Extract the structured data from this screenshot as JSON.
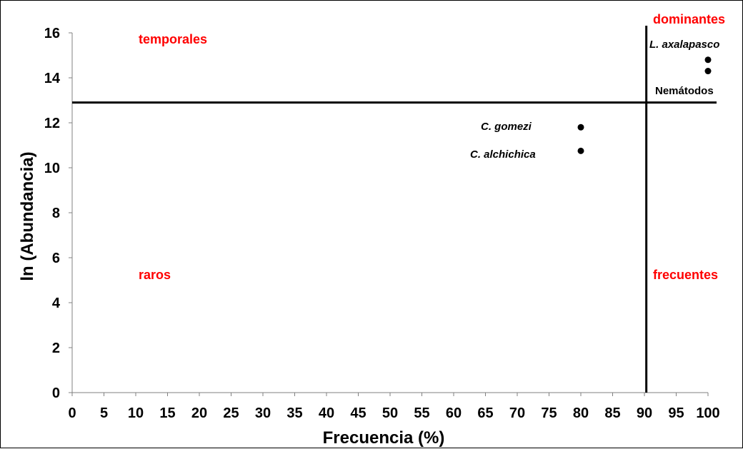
{
  "chart_data": {
    "type": "scatter",
    "title": "",
    "xlabel": "Frecuencia (%)",
    "ylabel": "ln (Abundancia)",
    "xlim": [
      0,
      100
    ],
    "ylim": [
      0,
      16
    ],
    "xticks": [
      0,
      5,
      10,
      15,
      20,
      25,
      30,
      35,
      40,
      45,
      50,
      55,
      60,
      65,
      70,
      75,
      80,
      85,
      90,
      95,
      100
    ],
    "yticks": [
      0,
      2,
      4,
      6,
      8,
      10,
      12,
      14,
      16
    ],
    "grid": false,
    "points": [
      {
        "label": "L. axalapasco",
        "italic": true,
        "x": 100,
        "y": 14.8
      },
      {
        "label": "Nemátodos",
        "italic": false,
        "x": 100,
        "y": 14.3
      },
      {
        "label": "C. gomezi",
        "italic": true,
        "x": 80,
        "y": 11.8
      },
      {
        "label": "C. alchichica",
        "italic": true,
        "x": 80,
        "y": 10.75
      }
    ],
    "reference_lines": {
      "horizontal_y": 12.9,
      "vertical_x": 90.3
    },
    "regions": [
      {
        "label": "temporales",
        "color": "#ff0000"
      },
      {
        "label": "dominantes",
        "color": "#ff0000"
      },
      {
        "label": "raros",
        "color": "#ff0000"
      },
      {
        "label": "frecuentes",
        "color": "#ff0000"
      }
    ]
  }
}
